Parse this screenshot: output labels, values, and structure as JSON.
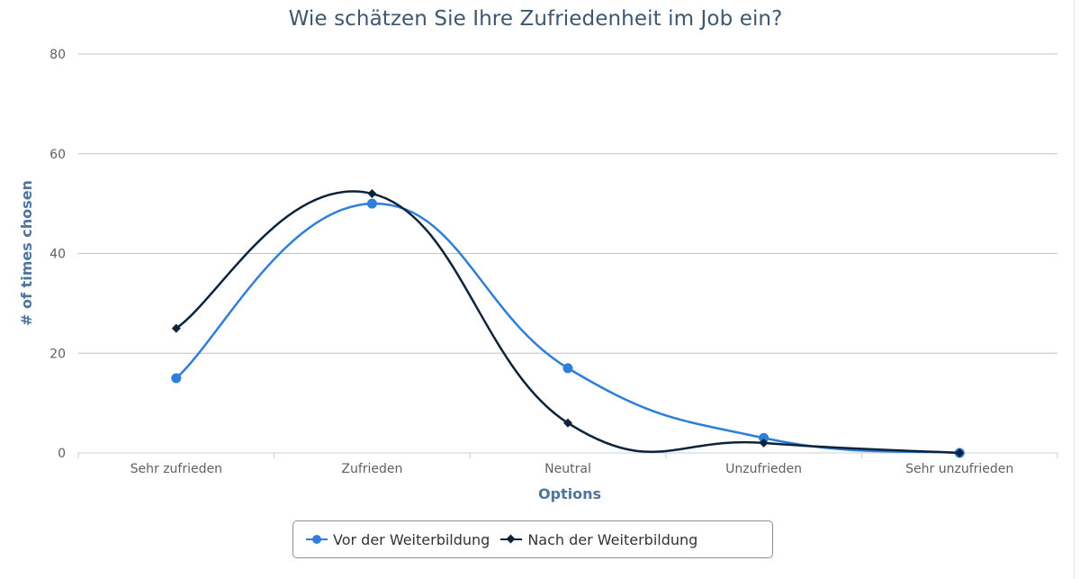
{
  "chart_data": {
    "type": "line",
    "smooth": true,
    "title": "Wie schätzen Sie Ihre Zufriedenheit im Job ein?",
    "xlabel": "Options",
    "ylabel": "# of times chosen",
    "categories": [
      "Sehr zufrieden",
      "Zufrieden",
      "Neutral",
      "Unzufrieden",
      "Sehr unzufrieden"
    ],
    "series": [
      {
        "name": "Vor der Weiterbildung",
        "color": "#2f7ed8",
        "marker": "circle",
        "values": [
          15,
          50,
          17,
          3,
          0
        ]
      },
      {
        "name": "Nach der Weiterbildung",
        "color": "#0d233a",
        "marker": "diamond",
        "values": [
          25,
          52,
          6,
          2,
          0
        ]
      }
    ],
    "ylim": [
      0,
      80
    ],
    "yticks": [
      0,
      20,
      40,
      60,
      80
    ],
    "grid": true,
    "legend_position": "bottom-center"
  },
  "title": "Wie schätzen Sie Ihre Zufriedenheit im Job ein?",
  "axes": {
    "x_title": "Options",
    "y_title": "# of times chosen",
    "y_ticks": [
      "0",
      "20",
      "40",
      "60",
      "80"
    ],
    "x_ticks": [
      "Sehr zufrieden",
      "Zufrieden",
      "Neutral",
      "Unzufrieden",
      "Sehr unzufrieden"
    ]
  },
  "legend": {
    "items": [
      {
        "label": "Vor der Weiterbildung",
        "color": "#2f7ed8",
        "icon": "circle-marker-icon"
      },
      {
        "label": "Nach der Weiterbildung",
        "color": "#0d233a",
        "icon": "diamond-marker-icon"
      }
    ]
  }
}
